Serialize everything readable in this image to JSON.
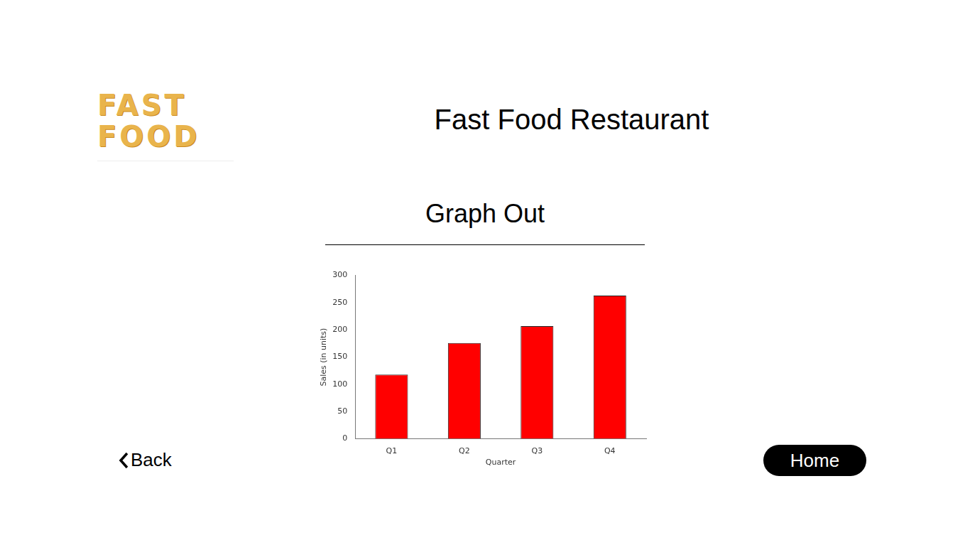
{
  "header": {
    "logo_text": "FAST\nFOOD",
    "title": "Fast Food Restaurant"
  },
  "section": {
    "title": "Graph Out"
  },
  "buttons": {
    "back": "Back",
    "home": "Home"
  },
  "chart_data": {
    "type": "bar",
    "categories": [
      "Q1",
      "Q2",
      "Q3",
      "Q4"
    ],
    "values": [
      118,
      176,
      207,
      263
    ],
    "color": "#ff0000",
    "x_label": "Quarter",
    "y_label": "Sales (in units)",
    "ylim": [
      0,
      300
    ],
    "yticks": [
      0,
      50,
      100,
      150,
      200,
      250,
      300
    ],
    "grid": false
  }
}
